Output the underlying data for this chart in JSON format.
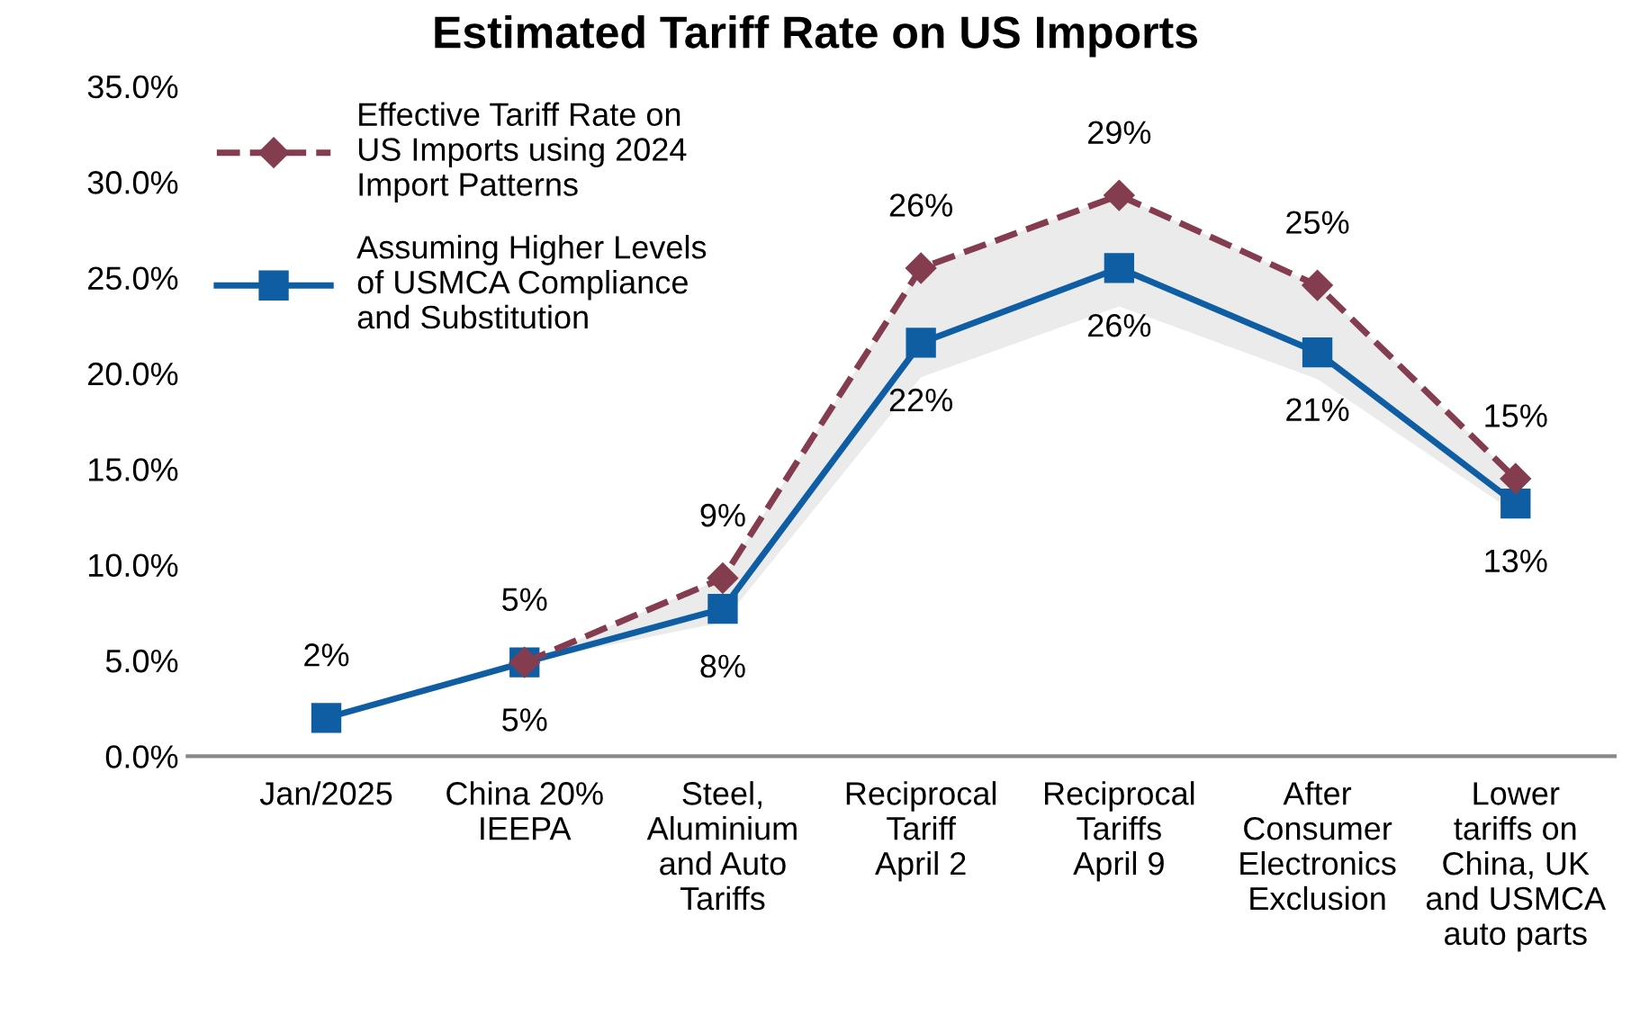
{
  "chart_data": {
    "type": "line",
    "title": "Estimated Tariff Rate on US Imports",
    "categories": [
      "Jan/2025",
      "China 20%\nIEEPA",
      "Steel,\nAluminium\nand Auto\nTariffs",
      "Reciprocal\nTariff\nApril 2",
      "Reciprocal\nTariffs\nApril 9",
      "After\nConsumer\nElectronics\nExclusion",
      "Lower\ntariffs on\nChina, UK\nand USMCA\nauto parts"
    ],
    "series": [
      {
        "name": "Effective Tariff Rate on\nUS Imports using 2024\nImport Patterns",
        "color": "#843c4f",
        "marker": "diamond",
        "line_style": "dashed",
        "values": [
          null,
          4.9,
          9.3,
          25.5,
          29.3,
          24.6,
          14.5
        ],
        "value_labels": [
          null,
          "5%",
          "9%",
          "26%",
          "29%",
          "25%",
          "15%"
        ],
        "lower": [
          null,
          4.9,
          7.0,
          19.8,
          23.5,
          19.7,
          12.7
        ],
        "upper": [
          null,
          4.9,
          9.3,
          25.5,
          29.3,
          24.6,
          14.5
        ]
      },
      {
        "name": "Assuming Higher Levels\nof USMCA Compliance\nand Substitution",
        "color": "#0f5ea3",
        "marker": "square",
        "line_style": "solid",
        "values": [
          2.0,
          4.9,
          7.7,
          21.6,
          25.5,
          21.1,
          13.2
        ],
        "value_labels": [
          "2%",
          "5%",
          "8%",
          "22%",
          "26%",
          "21%",
          "13%"
        ]
      }
    ],
    "ylim": [
      0,
      35
    ],
    "yticks": [
      {
        "value": 0,
        "label": "0.0%"
      },
      {
        "value": 5,
        "label": "5.0%"
      },
      {
        "value": 10,
        "label": "10.0%"
      },
      {
        "value": 15,
        "label": "15.0%"
      },
      {
        "value": 20,
        "label": "20.0%"
      },
      {
        "value": 25,
        "label": "25.0%"
      },
      {
        "value": 30,
        "label": "30.0%"
      },
      {
        "value": 35,
        "label": "35.0%"
      }
    ],
    "legend": "top left",
    "grid": false
  }
}
